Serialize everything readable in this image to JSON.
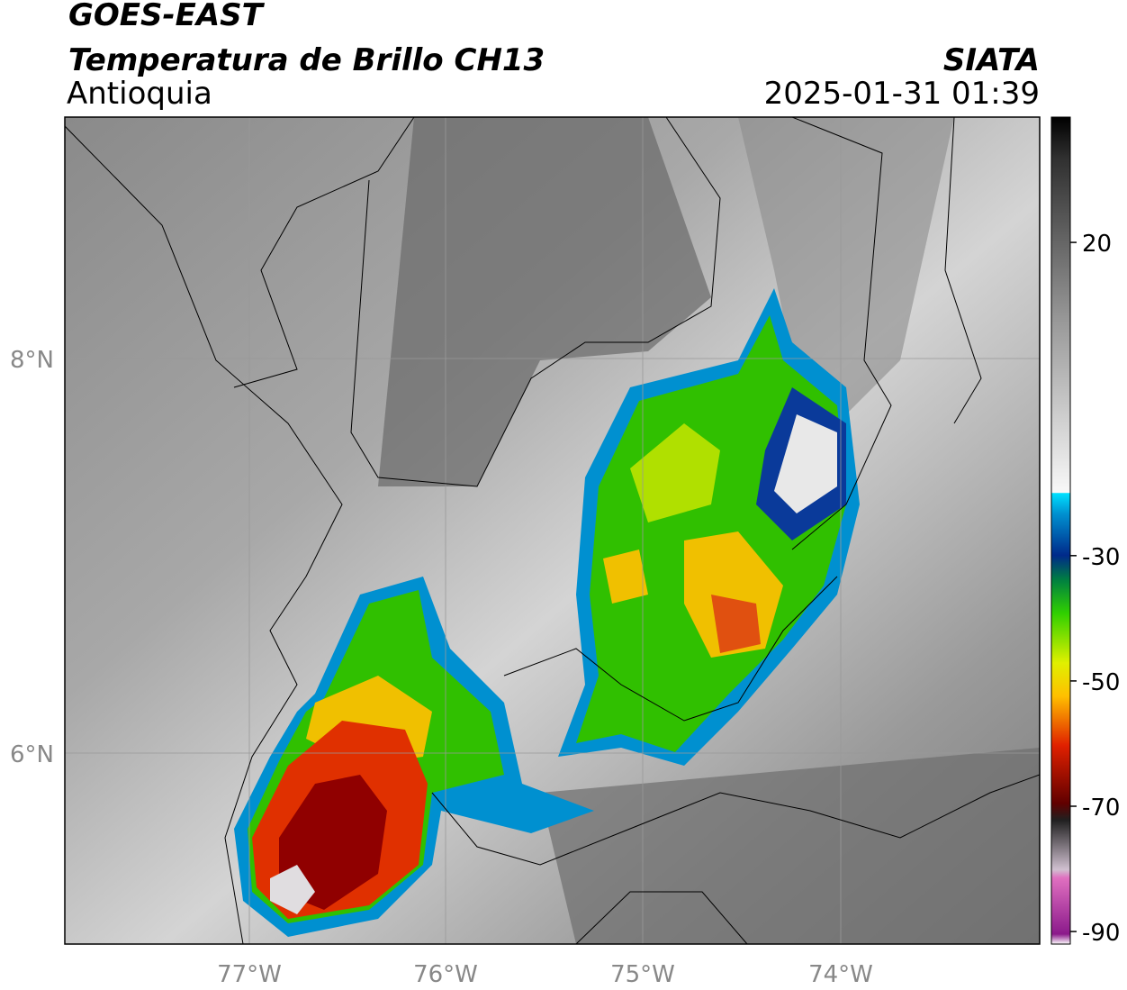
{
  "header": {
    "satellite": "GOES-EAST",
    "product": "Temperatura de Brillo CH13",
    "region": "Antioquia",
    "organization": "SIATA",
    "datetime": "2025-01-31 01:39"
  },
  "map": {
    "lat_labels": [
      "8°N",
      "6°N"
    ],
    "lon_labels": [
      "77°W",
      "76°W",
      "75°W",
      "74°W"
    ]
  },
  "colorbar": {
    "lim": [
      -92,
      40
    ],
    "ticks": [
      20,
      -30,
      -50,
      -70,
      -90
    ]
  }
}
